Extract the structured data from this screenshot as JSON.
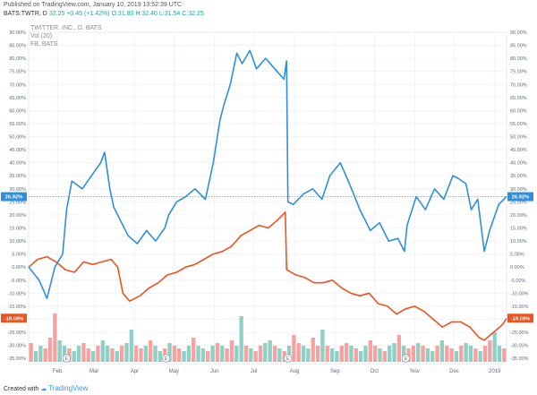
{
  "header": {
    "published": "Published on TradingView.com, January 10, 2019 13:52:39 UTC",
    "symbol": "BATS:TWTR, D",
    "price": "32.25",
    "change": "+0.45 (+1.42%)",
    "open": "O:31.80",
    "high": "H:32.40",
    "low": "L:31.54",
    "close": "C:32.25"
  },
  "legend": {
    "line1": "TWITTER, INC., D, BATS",
    "line2": "Vol (20)",
    "line3": "FB, BATS"
  },
  "footer": {
    "created_with": "Created with",
    "brand": "TradingView"
  },
  "colors": {
    "twtr": "#2f8fdc",
    "fb": "#f0521c",
    "vol_up": "#8fcfc4",
    "vol_down": "#f4a3a0",
    "grid": "#e9eef5",
    "axis_text": "#5a6b7f"
  },
  "chart_data": {
    "type": "line",
    "x_range": [
      "2018-01-10",
      "2019-01-10"
    ],
    "ylim": [
      -37,
      90
    ],
    "ytick_labels": [
      "-35.00%",
      "-30.00%",
      "-25.00%",
      "-20.00%",
      "-15.00%",
      "-10.00%",
      "-5.00%",
      "0.00%",
      "5.00%",
      "10.00%",
      "15.00%",
      "20.00%",
      "25.00%",
      "30.00%",
      "35.00%",
      "40.00%",
      "45.00%",
      "50.00%",
      "55.00%",
      "60.00%",
      "65.00%",
      "70.00%",
      "75.00%",
      "80.00%",
      "85.00%",
      "90.00%"
    ],
    "ytick_values": [
      -35,
      -30,
      -25,
      -20,
      -15,
      -10,
      -5,
      0,
      5,
      10,
      15,
      20,
      25,
      30,
      35,
      40,
      45,
      50,
      55,
      60,
      65,
      70,
      75,
      80,
      85,
      90
    ],
    "xtick_labels": [
      "Feb",
      "Mar",
      "Apr",
      "May",
      "Jun",
      "Jul",
      "Aug",
      "Sep",
      "Oct",
      "Nov",
      "Dec",
      "2019"
    ],
    "xtick_dates": [
      "2018-02-01",
      "2018-03-01",
      "2018-04-01",
      "2018-05-01",
      "2018-06-01",
      "2018-07-01",
      "2018-08-01",
      "2018-09-01",
      "2018-10-01",
      "2018-11-01",
      "2018-12-01",
      "2019-01-01"
    ],
    "earnings_dates": [
      "2018-02-08",
      "2018-04-25",
      "2018-07-27",
      "2018-10-25"
    ],
    "earnings_label": "E",
    "series": [
      {
        "key": "twtr",
        "last_label": "26.92%",
        "x": [
          "2018-01-10",
          "2018-01-18",
          "2018-01-24",
          "2018-01-30",
          "2018-02-05",
          "2018-02-08",
          "2018-02-12",
          "2018-02-20",
          "2018-02-27",
          "2018-03-06",
          "2018-03-09",
          "2018-03-13",
          "2018-03-16",
          "2018-03-21",
          "2018-03-27",
          "2018-04-03",
          "2018-04-10",
          "2018-04-17",
          "2018-04-24",
          "2018-04-27",
          "2018-05-03",
          "2018-05-10",
          "2018-05-17",
          "2018-05-25",
          "2018-05-31",
          "2018-06-05",
          "2018-06-08",
          "2018-06-13",
          "2018-06-18",
          "2018-06-22",
          "2018-06-28",
          "2018-07-03",
          "2018-07-10",
          "2018-07-17",
          "2018-07-24",
          "2018-07-26",
          "2018-07-27",
          "2018-07-31",
          "2018-08-08",
          "2018-08-15",
          "2018-08-22",
          "2018-08-28",
          "2018-09-05",
          "2018-09-12",
          "2018-09-20",
          "2018-09-28",
          "2018-10-05",
          "2018-10-12",
          "2018-10-19",
          "2018-10-24",
          "2018-10-26",
          "2018-11-02",
          "2018-11-09",
          "2018-11-16",
          "2018-11-23",
          "2018-11-30",
          "2018-12-04",
          "2018-12-10",
          "2018-12-14",
          "2018-12-19",
          "2018-12-24",
          "2018-12-28",
          "2019-01-04",
          "2019-01-10"
        ],
        "y": [
          0,
          -5,
          -12,
          0,
          5,
          22,
          33,
          30,
          35,
          40,
          44,
          30,
          23,
          18,
          12,
          9,
          14,
          10,
          15,
          20,
          25,
          27,
          30,
          26,
          40,
          56,
          62,
          70,
          82,
          78,
          83,
          76,
          80,
          76,
          72,
          79,
          25,
          24,
          28,
          30,
          26,
          35,
          40,
          32,
          22,
          14,
          17,
          10,
          11,
          6,
          16,
          27,
          22,
          30,
          26,
          35,
          34,
          32,
          22,
          26,
          6,
          14,
          24,
          27
        ]
      },
      {
        "key": "fb",
        "last_label": "-19.59%",
        "x": [
          "2018-01-10",
          "2018-01-17",
          "2018-01-24",
          "2018-01-31",
          "2018-02-07",
          "2018-02-14",
          "2018-02-21",
          "2018-02-28",
          "2018-03-07",
          "2018-03-14",
          "2018-03-19",
          "2018-03-23",
          "2018-03-28",
          "2018-04-05",
          "2018-04-12",
          "2018-04-19",
          "2018-04-26",
          "2018-05-03",
          "2018-05-10",
          "2018-05-17",
          "2018-05-24",
          "2018-05-31",
          "2018-06-07",
          "2018-06-14",
          "2018-06-21",
          "2018-06-28",
          "2018-07-05",
          "2018-07-12",
          "2018-07-19",
          "2018-07-25",
          "2018-07-26",
          "2018-08-02",
          "2018-08-09",
          "2018-08-16",
          "2018-08-23",
          "2018-08-30",
          "2018-09-06",
          "2018-09-13",
          "2018-09-20",
          "2018-09-27",
          "2018-10-04",
          "2018-10-11",
          "2018-10-18",
          "2018-10-25",
          "2018-11-01",
          "2018-11-08",
          "2018-11-15",
          "2018-11-22",
          "2018-11-29",
          "2018-12-06",
          "2018-12-13",
          "2018-12-20",
          "2018-12-24",
          "2018-12-31",
          "2019-01-07",
          "2019-01-10"
        ],
        "y": [
          0,
          3,
          4,
          2,
          -1,
          -2,
          2,
          1,
          2,
          3,
          0,
          -10,
          -13,
          -11,
          -8,
          -6,
          -3,
          -2,
          0,
          1,
          3,
          5,
          6,
          8,
          12,
          14,
          16,
          15,
          18,
          21,
          -1,
          -3,
          -4,
          -6,
          -6,
          -5,
          -8,
          -10,
          -11,
          -10,
          -14,
          -15,
          -18,
          -16,
          -15,
          -17,
          -20,
          -23,
          -21,
          -21,
          -23,
          -27,
          -28,
          -25,
          -22,
          -19.59
        ]
      },
      {
        "key": "volume",
        "type": "bar",
        "note": "relative daily volume (0-1), bearish bars red, bullish bars green",
        "values": [
          0.35,
          0.2,
          0.3,
          0.25,
          0.45,
          0.9,
          0.4,
          0.3,
          0.25,
          0.2,
          0.3,
          0.35,
          0.25,
          0.2,
          0.3,
          0.4,
          0.3,
          0.25,
          0.2,
          0.3,
          0.35,
          0.6,
          0.3,
          0.25,
          0.3,
          0.4,
          0.3,
          0.2,
          0.25,
          0.35,
          0.3,
          0.25,
          0.2,
          0.3,
          0.45,
          0.3,
          0.25,
          0.2,
          0.3,
          0.35,
          0.3,
          0.25,
          0.4,
          0.3,
          0.85,
          0.3,
          0.25,
          0.2,
          0.3,
          0.35,
          0.4,
          0.3,
          0.25,
          0.2,
          0.3,
          0.5,
          0.35,
          0.3,
          0.25,
          0.45,
          0.3,
          0.6,
          0.3,
          0.25,
          0.2,
          0.3,
          0.35,
          0.3,
          0.25,
          0.2,
          0.3,
          0.4,
          0.3,
          0.25,
          0.2,
          0.3,
          0.35,
          0.5,
          0.3,
          0.25,
          0.3,
          0.35,
          0.3,
          0.25,
          0.2,
          0.3,
          0.4,
          0.3,
          0.25,
          0.2,
          0.3,
          0.35,
          0.3,
          0.25,
          0.2,
          0.3,
          0.4,
          0.55,
          0.3,
          0.25
        ],
        "up": [
          0,
          1,
          1,
          0,
          0,
          0,
          1,
          1,
          0,
          1,
          1,
          0,
          0,
          1,
          0,
          1,
          1,
          0,
          1,
          0,
          1,
          1,
          0,
          0,
          1,
          0,
          1,
          1,
          0,
          1,
          0,
          0,
          1,
          1,
          0,
          1,
          1,
          0,
          1,
          0,
          1,
          0,
          0,
          1,
          1,
          0,
          1,
          0,
          0,
          1,
          1,
          0,
          1,
          0,
          1,
          0,
          0,
          1,
          1,
          0,
          0,
          1,
          0,
          1,
          1,
          0,
          0,
          1,
          0,
          1,
          1,
          0,
          0,
          1,
          0,
          1,
          1,
          0,
          1,
          0,
          0,
          1,
          0,
          1,
          1,
          0,
          1,
          0,
          0,
          1,
          0,
          1,
          1,
          0,
          1,
          0,
          0,
          1,
          1,
          0
        ]
      }
    ]
  }
}
